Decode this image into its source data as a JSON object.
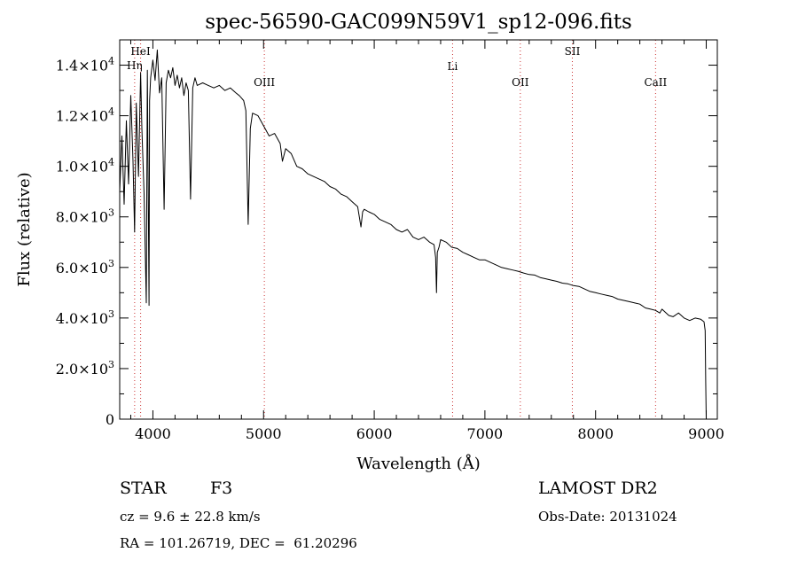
{
  "chart_data": {
    "type": "line",
    "title": "spec-56590-GAC099N59V1_sp12-096.fits",
    "xlabel": "Wavelength (Å)",
    "ylabel": "Flux (relative)",
    "xlim": [
      3700,
      9100
    ],
    "ylim": [
      0,
      15000
    ],
    "grid": false,
    "x_ticks": [
      {
        "value": 4000,
        "label": "4000"
      },
      {
        "value": 5000,
        "label": "5000"
      },
      {
        "value": 6000,
        "label": "6000"
      },
      {
        "value": 7000,
        "label": "7000"
      },
      {
        "value": 8000,
        "label": "8000"
      },
      {
        "value": 9000,
        "label": "9000"
      }
    ],
    "y_ticks": [
      {
        "value": 0,
        "mantissa": "0",
        "exponent": ""
      },
      {
        "value": 2000,
        "mantissa": "2.0×10",
        "exponent": "3"
      },
      {
        "value": 4000,
        "mantissa": "4.0×10",
        "exponent": "3"
      },
      {
        "value": 6000,
        "mantissa": "6.0×10",
        "exponent": "3"
      },
      {
        "value": 8000,
        "mantissa": "8.0×10",
        "exponent": "3"
      },
      {
        "value": 10000,
        "mantissa": "1.0×10",
        "exponent": "4"
      },
      {
        "value": 12000,
        "mantissa": "1.2×10",
        "exponent": "4"
      },
      {
        "value": 14000,
        "mantissa": "1.4×10",
        "exponent": "4"
      }
    ],
    "line_markers": [
      {
        "label": "HeI",
        "wavelength": 3889
      },
      {
        "label": "Hη",
        "wavelength": 3835
      },
      {
        "label": "OIII",
        "wavelength": 5007
      },
      {
        "label": "Li",
        "wavelength": 6708
      },
      {
        "label": "OII",
        "wavelength": 7320
      },
      {
        "label": "SII",
        "wavelength": 7790
      },
      {
        "label": "CaII",
        "wavelength": 8542
      }
    ],
    "series": [
      {
        "name": "spectrum",
        "x": [
          3700,
          3720,
          3740,
          3760,
          3780,
          3800,
          3820,
          3835,
          3850,
          3870,
          3889,
          3900,
          3920,
          3940,
          3950,
          3965,
          3970,
          3980,
          4000,
          4020,
          4040,
          4060,
          4080,
          4101,
          4120,
          4140,
          4160,
          4180,
          4200,
          4220,
          4240,
          4260,
          4280,
          4300,
          4320,
          4340,
          4360,
          4380,
          4400,
          4450,
          4500,
          4550,
          4600,
          4650,
          4700,
          4750,
          4780,
          4800,
          4820,
          4840,
          4861,
          4880,
          4900,
          4950,
          5000,
          5050,
          5100,
          5150,
          5170,
          5200,
          5250,
          5300,
          5350,
          5400,
          5450,
          5500,
          5550,
          5600,
          5650,
          5700,
          5750,
          5800,
          5850,
          5880,
          5895,
          5910,
          5950,
          6000,
          6050,
          6100,
          6150,
          6200,
          6250,
          6300,
          6350,
          6400,
          6450,
          6500,
          6540,
          6555,
          6563,
          6570,
          6585,
          6600,
          6650,
          6700,
          6750,
          6800,
          6850,
          6900,
          6950,
          7000,
          7050,
          7100,
          7150,
          7200,
          7250,
          7300,
          7350,
          7400,
          7450,
          7500,
          7550,
          7600,
          7650,
          7700,
          7750,
          7800,
          7850,
          7900,
          7950,
          8000,
          8050,
          8100,
          8150,
          8200,
          8250,
          8300,
          8350,
          8400,
          8450,
          8498,
          8542,
          8580,
          8600,
          8662,
          8700,
          8750,
          8800,
          8850,
          8900,
          8950,
          8980,
          8990,
          8995,
          9000
        ],
        "y": [
          9000,
          11200,
          8500,
          11800,
          9300,
          12800,
          10200,
          7400,
          12500,
          9600,
          13700,
          11500,
          8900,
          4600,
          13800,
          4500,
          12600,
          13500,
          14200,
          13400,
          14600,
          12900,
          13500,
          8300,
          13300,
          13800,
          13500,
          13900,
          13200,
          13600,
          13100,
          13500,
          12800,
          13300,
          13000,
          8700,
          13100,
          13500,
          13200,
          13300,
          13200,
          13100,
          13200,
          13000,
          13100,
          12900,
          12800,
          12700,
          12600,
          12200,
          7700,
          11500,
          12100,
          12000,
          11600,
          11200,
          11300,
          10900,
          10200,
          10700,
          10500,
          10000,
          9900,
          9700,
          9600,
          9500,
          9400,
          9200,
          9100,
          8900,
          8800,
          8600,
          8400,
          7600,
          8200,
          8300,
          8200,
          8100,
          7900,
          7800,
          7700,
          7500,
          7400,
          7500,
          7200,
          7100,
          7200,
          7000,
          6900,
          6400,
          5000,
          6600,
          6800,
          7100,
          7000,
          6800,
          6750,
          6600,
          6500,
          6400,
          6300,
          6300,
          6200,
          6100,
          6000,
          5950,
          5900,
          5850,
          5780,
          5720,
          5700,
          5600,
          5550,
          5500,
          5450,
          5380,
          5350,
          5280,
          5250,
          5150,
          5050,
          5000,
          4950,
          4900,
          4850,
          4750,
          4700,
          4650,
          4600,
          4550,
          4400,
          4350,
          4300,
          4200,
          4350,
          4100,
          4050,
          4200,
          4000,
          3900,
          4000,
          3950,
          3850,
          3500,
          1500,
          0
        ]
      }
    ]
  },
  "info": {
    "object_class": "STAR",
    "subclass": "F3",
    "survey": "LAMOST DR2",
    "redshift": "cz = 9.6 ± 22.8 km/s",
    "obs_date": "Obs-Date: 20131024",
    "coords": "RA = 101.26719, DEC =  61.20296"
  }
}
